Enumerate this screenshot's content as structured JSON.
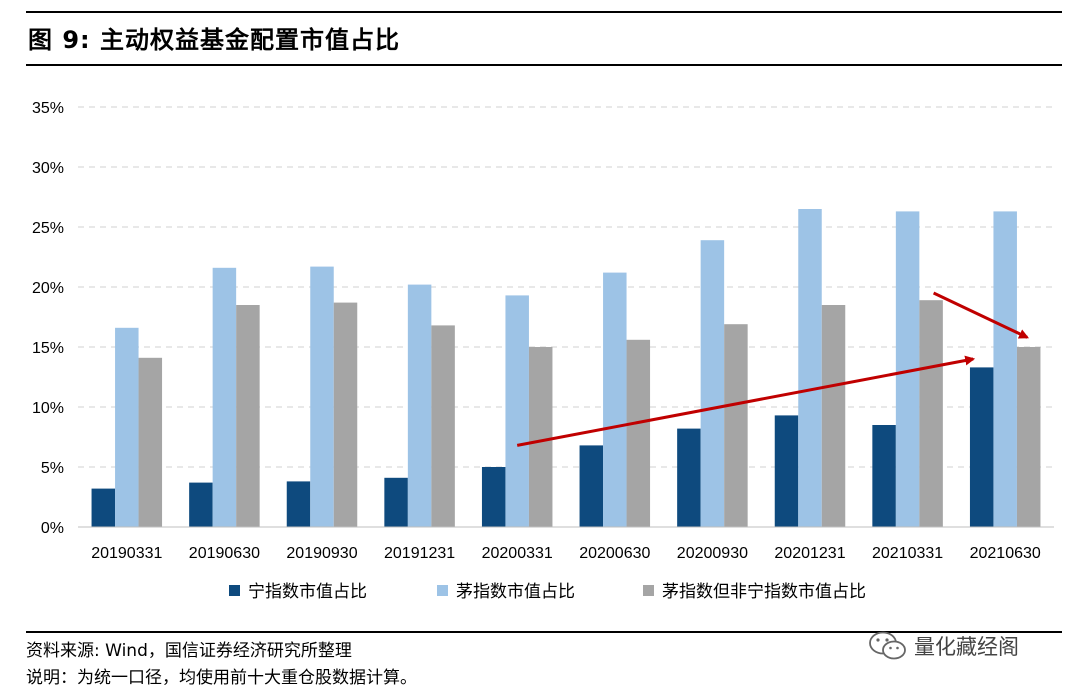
{
  "figure": {
    "title": "图 9:  主动权益基金配置市值占比"
  },
  "chart_data": {
    "type": "bar",
    "categories": [
      "20190331",
      "20190630",
      "20190930",
      "20191231",
      "20200331",
      "20200630",
      "20200930",
      "20201231",
      "20210331",
      "20210630"
    ],
    "series": [
      {
        "name": "宁指数市值占比",
        "color": "#0e4a7e",
        "values": [
          3.2,
          3.7,
          3.8,
          4.1,
          5.0,
          6.8,
          8.2,
          9.3,
          8.5,
          13.3
        ]
      },
      {
        "name": "茅指数市值占比",
        "color": "#9dc3e6",
        "values": [
          16.6,
          21.6,
          21.7,
          20.2,
          19.3,
          21.2,
          23.9,
          26.5,
          26.3,
          26.3
        ]
      },
      {
        "name": "茅指数但非宁指数市值占比",
        "color": "#a5a5a5",
        "values": [
          14.1,
          18.5,
          18.7,
          16.8,
          15.0,
          15.6,
          16.9,
          18.5,
          18.9,
          15.0
        ]
      }
    ],
    "y_ticks": [
      "0%",
      "5%",
      "10%",
      "15%",
      "20%",
      "25%",
      "30%",
      "35%"
    ],
    "ylim": [
      0,
      35
    ],
    "grid": "horizontal dashed",
    "legend_position": "bottom",
    "annotations": [
      {
        "type": "arrow",
        "color": "#c00000",
        "from": [
          "20200331",
          6.8
        ],
        "to": [
          "20210630",
          14.0
        ]
      },
      {
        "type": "arrow",
        "color": "#c00000",
        "from": [
          "20210331",
          19.5
        ],
        "to": [
          "20210630",
          15.8
        ]
      }
    ]
  },
  "footer": {
    "source": "资料来源: Wind，国信证券经济研究所整理",
    "note": "说明：为统一口径，均使用前十大重仓股数据计算。"
  },
  "watermark": {
    "text": "量化藏经阁",
    "icon": "wechat-icon"
  }
}
